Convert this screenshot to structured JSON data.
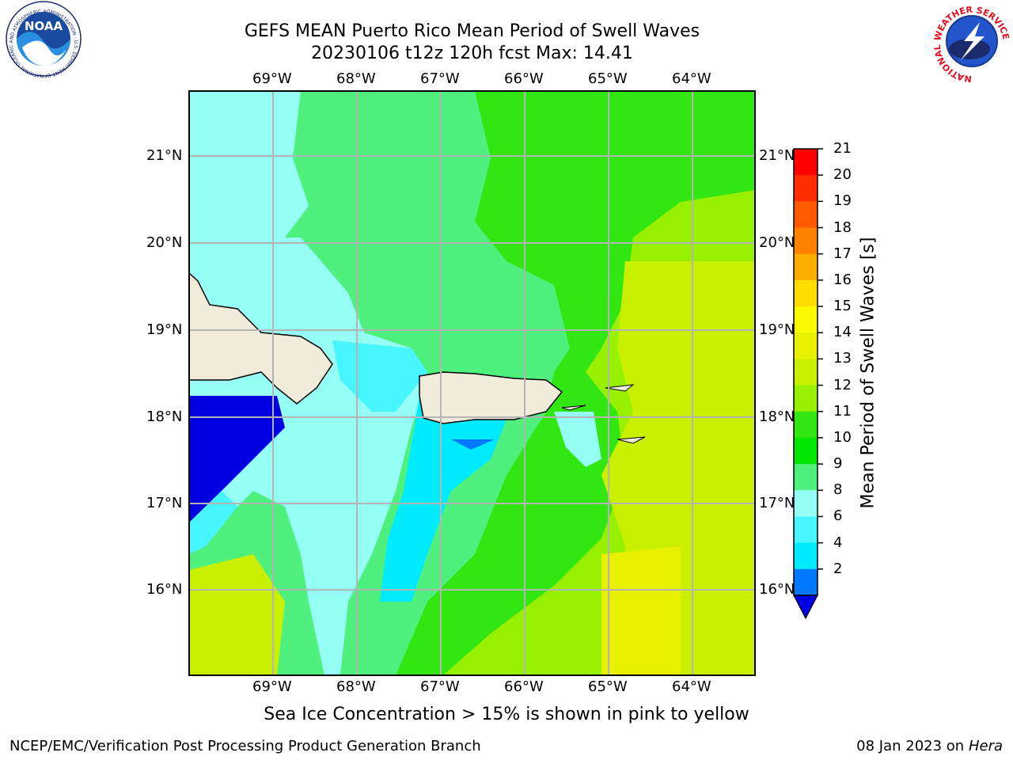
{
  "title": {
    "line1": "GEFS MEAN Puerto Rico Mean Period of Swell Waves",
    "line2": "20230106 t12z 120h fcst   Max: 14.41"
  },
  "map": {
    "lon_ticks": [
      "69°W",
      "68°W",
      "67°W",
      "66°W",
      "65°W",
      "64°W"
    ],
    "lat_ticks": [
      "21°N",
      "20°N",
      "19°N",
      "18°N",
      "17°N",
      "16°N"
    ],
    "colors": {
      "land": "#efecdc",
      "grid": "#b4b4b4"
    }
  },
  "colorbar": {
    "label": "Mean Period of Swell Waves [s]",
    "ticks": [
      "21",
      "20",
      "19",
      "18",
      "17",
      "16",
      "15",
      "14",
      "13",
      "12",
      "11",
      "10",
      "9",
      "8",
      "6",
      "4",
      "2"
    ],
    "colors": [
      "#ff0000",
      "#ff2d00",
      "#ff5a00",
      "#ff8200",
      "#ffae00",
      "#ffdb00",
      "#fafa00",
      "#e6f000",
      "#c8f000",
      "#96f000",
      "#32e614",
      "#00e600",
      "#50f07e",
      "#96fff5",
      "#46f5ff",
      "#00ebff",
      "#0078ff"
    ],
    "extend_color": "#0000e1"
  },
  "caption": "Sea Ice Concentration > 15% is shown in pink to yellow",
  "footer": {
    "left": "NCEP/EMC/Verification Post Processing Product Generation Branch",
    "right_prefix": "08 Jan 2023 on ",
    "right_host": "Hera"
  },
  "logos": {
    "noaa": {
      "text": "NOAA",
      "ring_text": "NATIONAL OCEANIC AND ATMOSPHERIC ADMINISTRATION · U.S. DEPARTMENT OF COMMERCE"
    },
    "nws": {
      "ring_text": "NATIONAL WEATHER SERVICE"
    }
  }
}
